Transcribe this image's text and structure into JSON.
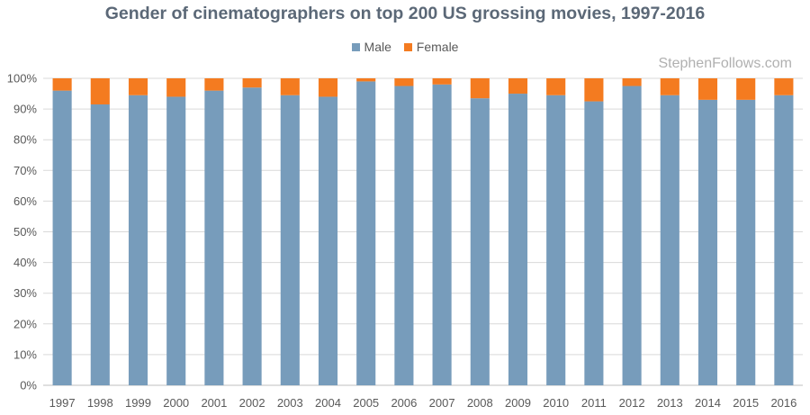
{
  "chart_data": {
    "type": "bar",
    "stacked": true,
    "title": "Gender of cinematographers on top 200 US grossing movies, 1997-2016",
    "categories": [
      "1997",
      "1998",
      "1999",
      "2000",
      "2001",
      "2002",
      "2003",
      "2004",
      "2005",
      "2006",
      "2007",
      "2008",
      "2009",
      "2010",
      "2011",
      "2012",
      "2013",
      "2014",
      "2015",
      "2016"
    ],
    "series": [
      {
        "name": "Male",
        "color": "#779cbb",
        "values": [
          96,
          91.5,
          94.5,
          94,
          96,
          97,
          94.5,
          94,
          99,
          97.5,
          98,
          93.5,
          95,
          94.5,
          92.5,
          97.5,
          94.5,
          93,
          93,
          94.5
        ]
      },
      {
        "name": "Female",
        "color": "#f47b20",
        "values": [
          4,
          8.5,
          5.5,
          6,
          4,
          3,
          5.5,
          6,
          1,
          2.5,
          2,
          6.5,
          5,
          5.5,
          7.5,
          2.5,
          5.5,
          7,
          7,
          5.5
        ]
      }
    ],
    "yticks": [
      "0%",
      "10%",
      "20%",
      "30%",
      "40%",
      "50%",
      "60%",
      "70%",
      "80%",
      "90%",
      "100%"
    ],
    "ylim": [
      0,
      100
    ],
    "grid": true,
    "legend_position": "top-center"
  },
  "watermark": "StephenFollows.com"
}
